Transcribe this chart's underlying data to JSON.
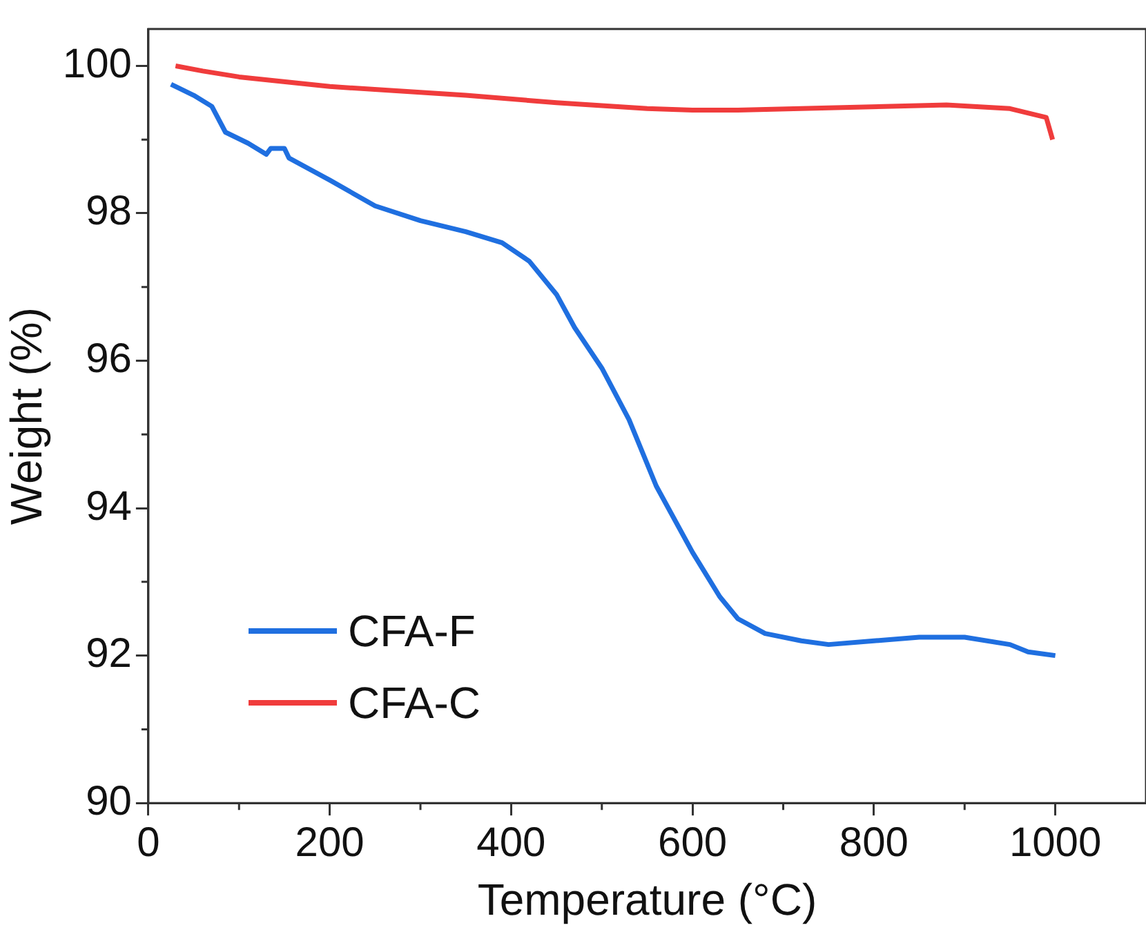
{
  "chart_data": {
    "type": "line",
    "xlabel": "Temperature (°C)",
    "ylabel": "Weight (%)",
    "xlim": [
      0,
      1100
    ],
    "ylim": [
      90,
      100.5
    ],
    "xticks": [
      0,
      200,
      400,
      600,
      800,
      1000
    ],
    "yticks": [
      90,
      92,
      94,
      96,
      98,
      100
    ],
    "grid": false,
    "legend": "bottom left",
    "marker": "none",
    "line_style": "solid",
    "series": [
      {
        "name": "CFA-F",
        "color": "#1f6fe0",
        "x": [
          25,
          50,
          70,
          85,
          110,
          130,
          135,
          150,
          155,
          200,
          250,
          300,
          350,
          390,
          420,
          450,
          470,
          500,
          530,
          560,
          600,
          630,
          650,
          680,
          720,
          750,
          800,
          850,
          900,
          950,
          970,
          1000
        ],
        "values": [
          99.75,
          99.6,
          99.45,
          99.1,
          98.95,
          98.8,
          98.88,
          98.88,
          98.75,
          98.45,
          98.1,
          97.9,
          97.75,
          97.6,
          97.35,
          96.9,
          96.45,
          95.9,
          95.2,
          94.3,
          93.4,
          92.8,
          92.5,
          92.3,
          92.2,
          92.15,
          92.2,
          92.25,
          92.25,
          92.15,
          92.05,
          92.0
        ]
      },
      {
        "name": "CFA-C",
        "color": "#f03c3c",
        "x": [
          30,
          60,
          100,
          200,
          350,
          450,
          550,
          600,
          650,
          750,
          880,
          950,
          990,
          997
        ],
        "values": [
          100.0,
          99.93,
          99.85,
          99.72,
          99.6,
          99.5,
          99.42,
          99.4,
          99.4,
          99.43,
          99.47,
          99.42,
          99.3,
          99.0
        ]
      }
    ]
  }
}
